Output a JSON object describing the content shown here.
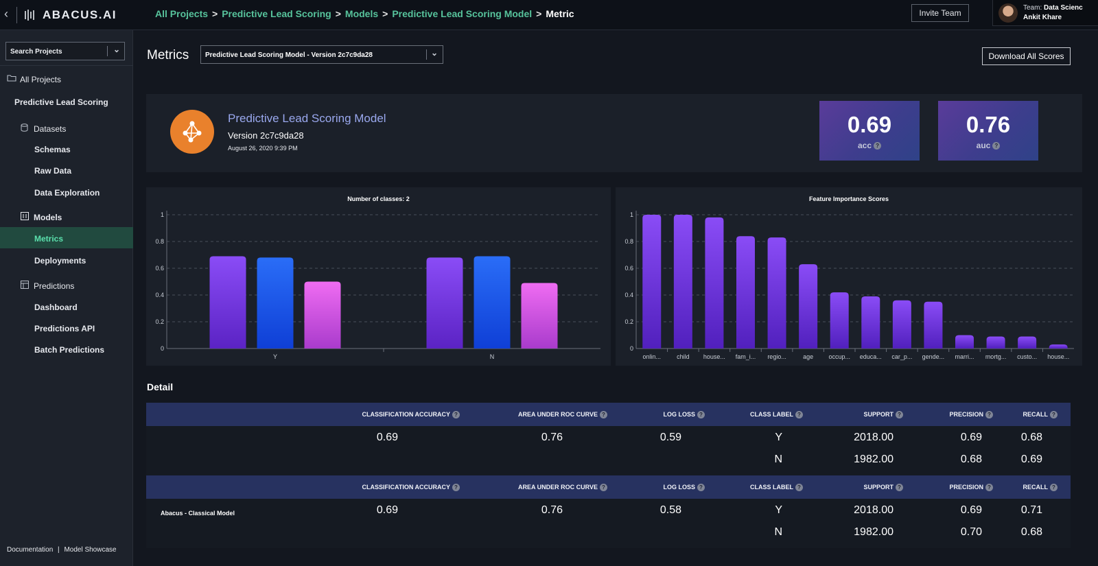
{
  "app": {
    "brand": "ABACUS.AI"
  },
  "breadcrumb": {
    "items": [
      "All Projects",
      "Predictive Lead Scoring",
      "Models",
      "Predictive Lead Scoring Model"
    ],
    "current": "Metric",
    "separator": ">"
  },
  "header": {
    "invite_label": "Invite Team",
    "team_label": "Team:",
    "team_name": "Data Scienc",
    "user_name": "Ankit Khare"
  },
  "sidebar": {
    "search_label": "Search Projects",
    "all_projects": "All Projects",
    "project": "Predictive Lead Scoring",
    "sections": {
      "datasets": "Datasets",
      "schemas": "Schemas",
      "raw_data": "Raw Data",
      "data_exploration": "Data Exploration",
      "models": "Models",
      "metrics": "Metrics",
      "deployments": "Deployments",
      "predictions": "Predictions",
      "dashboard": "Dashboard",
      "predictions_api": "Predictions API",
      "batch_predictions": "Batch Predictions"
    },
    "footer": {
      "documentation": "Documentation",
      "separator": "|",
      "showcase": "Model Showcase"
    }
  },
  "page": {
    "title": "Metrics",
    "version_select": "Predictive Lead Scoring Model - Version 2c7c9da28",
    "download_label": "Download All Scores"
  },
  "model": {
    "name": "Predictive Lead Scoring Model",
    "version": "Version 2c7c9da28",
    "date": "August 26, 2020 9:39 PM",
    "scores": [
      {
        "value": "0.69",
        "label": "acc"
      },
      {
        "value": "0.76",
        "label": "auc"
      }
    ]
  },
  "chart_data": [
    {
      "type": "bar",
      "title": "Number of classes: 2",
      "categories": [
        "Y",
        "N"
      ],
      "series": [
        {
          "values": [
            0.69,
            0.68
          ]
        },
        {
          "values": [
            0.68,
            0.69
          ]
        },
        {
          "values": [
            0.5,
            0.49
          ]
        }
      ],
      "ylim": [
        0,
        1
      ],
      "yticks": [
        "0",
        "0.2",
        "0.4",
        "0.6",
        "0.8",
        "1"
      ],
      "colors": [
        "#7b3ff0",
        "#1d5df0",
        "#dc54e8"
      ],
      "grid": true
    },
    {
      "type": "bar",
      "title": "Feature Importance Scores",
      "categories": [
        "onlin...",
        "child",
        "house...",
        "fam_i...",
        "regio...",
        "age",
        "occup...",
        "educa...",
        "car_p...",
        "gende...",
        "marri...",
        "mortg...",
        "custo...",
        "house..."
      ],
      "values": [
        1.0,
        1.0,
        0.98,
        0.84,
        0.83,
        0.63,
        0.42,
        0.39,
        0.36,
        0.35,
        0.1,
        0.09,
        0.09,
        0.03
      ],
      "ylim": [
        0,
        1
      ],
      "yticks": [
        "0",
        "0.2",
        "0.4",
        "0.6",
        "0.8",
        "1"
      ],
      "colors": [
        "#7b3ff0"
      ],
      "grid": true
    }
  ],
  "detail": {
    "title": "Detail",
    "headers": [
      "CLASSIFICATION ACCURACY",
      "AREA UNDER ROC CURVE",
      "LOG LOSS",
      "CLASS LABEL",
      "SUPPORT",
      "PRECISION",
      "RECALL"
    ],
    "help_glyph": "?",
    "tables": [
      {
        "name": "",
        "accuracy": "0.69",
        "auc": "0.76",
        "logloss": "0.59",
        "rows": [
          {
            "label": "Y",
            "support": "2018.00",
            "precision": "0.69",
            "recall": "0.68"
          },
          {
            "label": "N",
            "support": "1982.00",
            "precision": "0.68",
            "recall": "0.69"
          }
        ]
      },
      {
        "name": "Abacus - Classical Model",
        "accuracy": "0.69",
        "auc": "0.76",
        "logloss": "0.58",
        "rows": [
          {
            "label": "Y",
            "support": "2018.00",
            "precision": "0.69",
            "recall": "0.71"
          },
          {
            "label": "N",
            "support": "1982.00",
            "precision": "0.70",
            "recall": "0.68"
          }
        ]
      }
    ]
  }
}
